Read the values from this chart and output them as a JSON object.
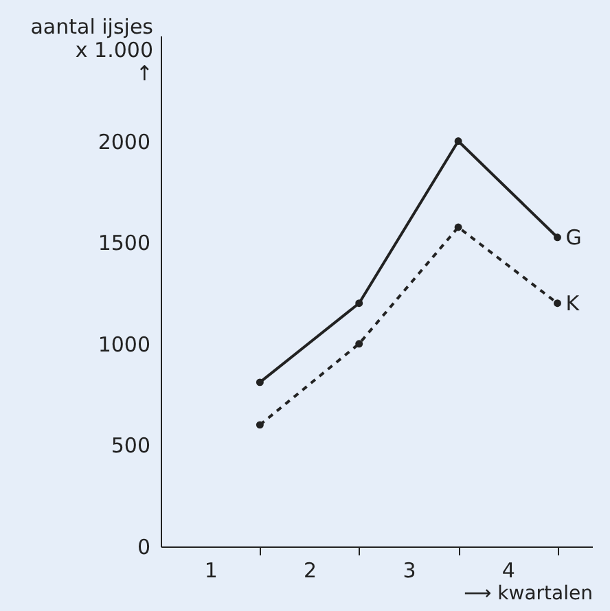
{
  "chart_data": {
    "type": "line",
    "xlabel": "⟶ kwartalen",
    "ylabel": "aantal ijsjes\nx 1.000\n↑",
    "x": [
      1,
      2,
      3,
      4
    ],
    "series": [
      {
        "name": "G",
        "color": "#222222",
        "values": [
          810,
          1200,
          2000,
          1525
        ],
        "line_style": "solid"
      },
      {
        "name": "K",
        "color": "#222222",
        "values": [
          600,
          1000,
          1575,
          1200
        ],
        "line_style": "dashed"
      }
    ],
    "xlim": [
      0,
      4.35
    ],
    "xticks": [
      {
        "value": 0.5,
        "label": "1"
      },
      {
        "value": 1,
        "label": null
      },
      {
        "value": 1.5,
        "label": "2"
      },
      {
        "value": 2,
        "label": null
      },
      {
        "value": 2.5,
        "label": "3"
      },
      {
        "value": 3,
        "label": null
      },
      {
        "value": 3.5,
        "label": "4"
      },
      {
        "value": 4,
        "label": null
      }
    ],
    "ylim": [
      0,
      2520
    ],
    "yticks": [
      0,
      500,
      1000,
      1500,
      2000
    ],
    "marker": "circle",
    "grid": false,
    "legend": false
  }
}
